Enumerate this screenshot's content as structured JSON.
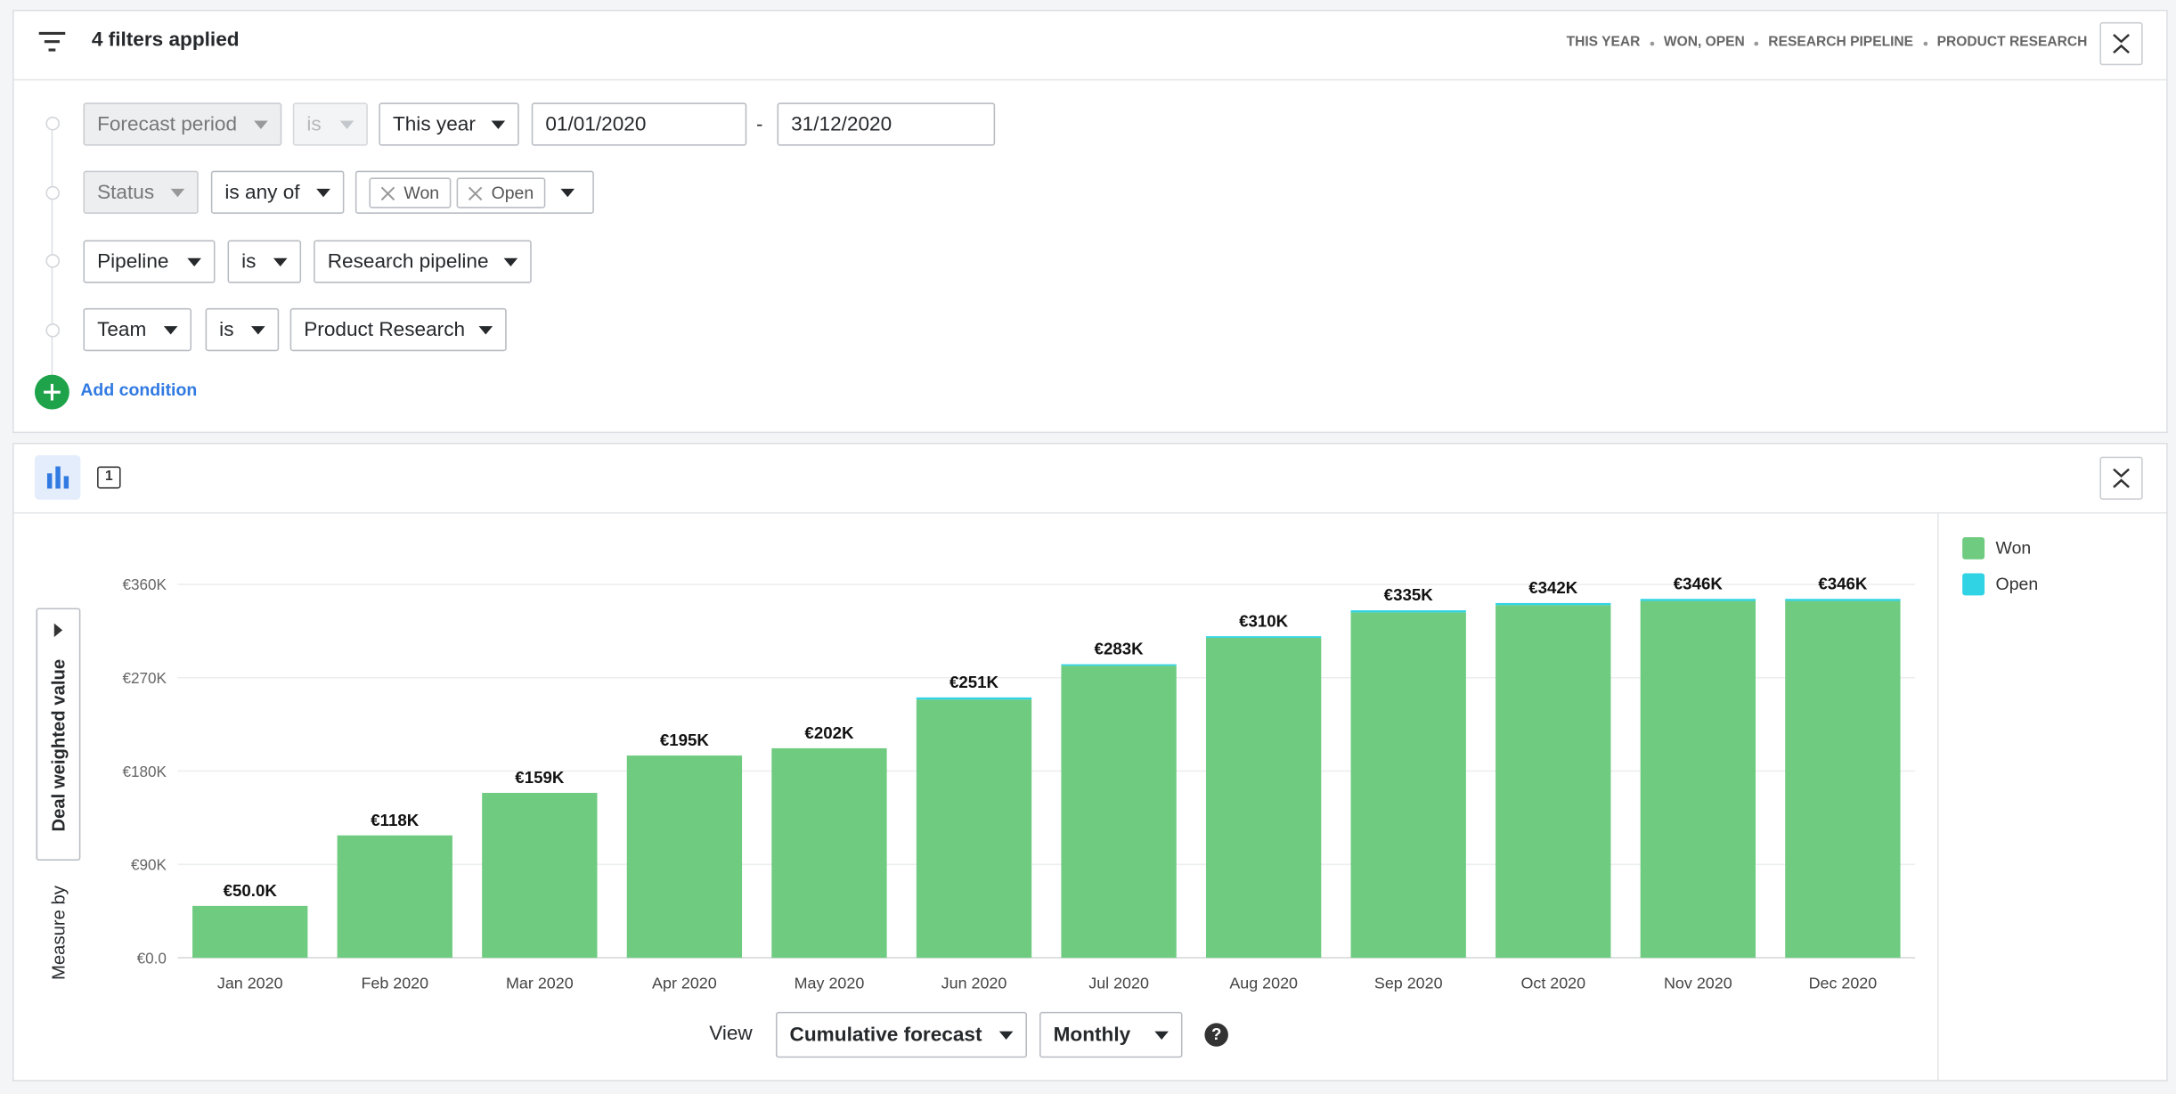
{
  "header": {
    "title": "4 filters applied",
    "summary": [
      "THIS YEAR",
      "WON, OPEN",
      "RESEARCH PIPELINE",
      "PRODUCT RESEARCH"
    ]
  },
  "filters": [
    {
      "field": "Forecast period",
      "operator": "is",
      "value": "This year",
      "from": "01/01/2020",
      "separator": "-",
      "to": "31/12/2020"
    },
    {
      "field": "Status",
      "operator": "is any of",
      "tags": [
        "Won",
        "Open"
      ]
    },
    {
      "field": "Pipeline",
      "operator": "is",
      "value": "Research pipeline"
    },
    {
      "field": "Team",
      "operator": "is",
      "value": "Product Research"
    }
  ],
  "add_condition": "Add condition",
  "toolbar": {
    "table_icon": "1"
  },
  "measure": {
    "label": "Measure by",
    "value": "Deal weighted value"
  },
  "view": {
    "label": "View",
    "mode": "Cumulative forecast",
    "interval": "Monthly",
    "help": "?"
  },
  "chart_data": {
    "type": "bar",
    "stacked": true,
    "categories": [
      "Jan 2020",
      "Feb 2020",
      "Mar 2020",
      "Apr 2020",
      "May 2020",
      "Jun 2020",
      "Jul 2020",
      "Aug 2020",
      "Sep 2020",
      "Oct 2020",
      "Nov 2020",
      "Dec 2020"
    ],
    "series": [
      {
        "name": "Won",
        "color": "#6fcb80",
        "values": [
          50000,
          118000,
          159000,
          195000,
          202000,
          249000,
          281500,
          308500,
          333000,
          340000,
          344000,
          344000
        ]
      },
      {
        "name": "Open",
        "color": "#2fd3e4",
        "values": [
          0,
          0,
          0,
          0,
          0,
          2000,
          1500,
          1500,
          2000,
          2000,
          2000,
          2000
        ]
      }
    ],
    "total_labels": [
      "€50.0K",
      "€118K",
      "€159K",
      "€195K",
      "€202K",
      "€251K",
      "€283K",
      "€310K",
      "€335K",
      "€342K",
      "€346K",
      "€346K"
    ],
    "ylim": [
      0,
      360000
    ],
    "yticks": [
      {
        "value": 0,
        "label": "€0.0"
      },
      {
        "value": 90000,
        "label": "€90K"
      },
      {
        "value": 180000,
        "label": "€180K"
      },
      {
        "value": 270000,
        "label": "€270K"
      },
      {
        "value": 360000,
        "label": "€360K"
      }
    ],
    "grid": true,
    "legend": "right"
  }
}
